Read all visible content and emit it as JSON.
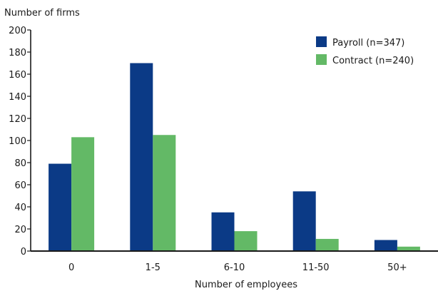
{
  "chart_data": {
    "type": "bar",
    "ylabel": "Number of firms",
    "xlabel": "Number of employees",
    "categories": [
      "0",
      "1-5",
      "6-10",
      "11-50",
      "50+"
    ],
    "ylim": [
      0,
      200
    ],
    "yticks": [
      0,
      20,
      40,
      60,
      80,
      100,
      120,
      140,
      160,
      180,
      200
    ],
    "grid": false,
    "legend_position": "top-right",
    "series": [
      {
        "name": "Payroll (n=347)",
        "color": "#0b3a86",
        "values": [
          79,
          170,
          35,
          54,
          10
        ]
      },
      {
        "name": "Contract (n=240)",
        "color": "#63b966",
        "values": [
          103,
          105,
          18,
          11,
          4
        ]
      }
    ]
  }
}
